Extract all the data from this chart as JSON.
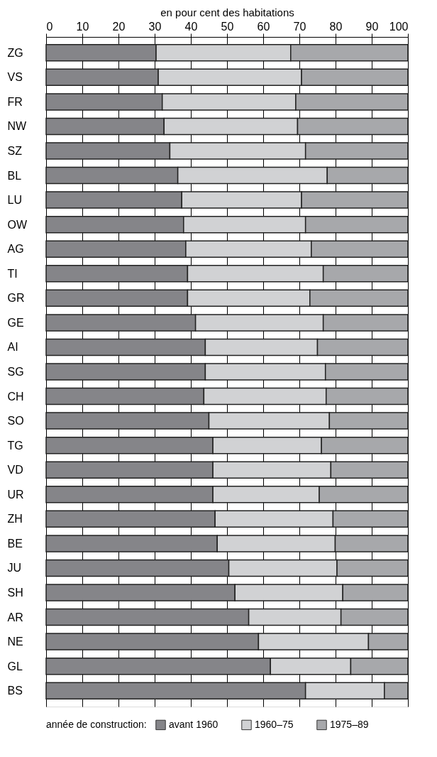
{
  "chart_data": {
    "type": "bar",
    "orientation": "horizontal",
    "stacked": true,
    "xlabel": "en pour cent des habitations",
    "legend_title": "année de construction:",
    "categories": [
      "ZG",
      "VS",
      "FR",
      "NW",
      "SZ",
      "BL",
      "LU",
      "OW",
      "AG",
      "TI",
      "GR",
      "GE",
      "AI",
      "SG",
      "CH",
      "SO",
      "TG",
      "VD",
      "UR",
      "ZH",
      "BE",
      "JU",
      "SH",
      "AR",
      "NE",
      "GL",
      "BS"
    ],
    "series": [
      {
        "name": "avant 1960",
        "color": "#858589",
        "values": [
          30.4,
          31.0,
          32.1,
          32.6,
          34.2,
          36.4,
          37.5,
          38.0,
          38.6,
          39.1,
          39.1,
          41.3,
          44.0,
          44.0,
          43.6,
          45.0,
          46.1,
          46.1,
          46.1,
          46.7,
          47.3,
          50.5,
          52.2,
          56.0,
          58.7,
          62.0,
          71.7
        ]
      },
      {
        "name": "1960–75",
        "color": "#d1d2d4",
        "values": [
          37.2,
          39.6,
          36.9,
          36.9,
          37.5,
          41.3,
          33.1,
          33.7,
          34.7,
          37.5,
          33.8,
          35.3,
          31.0,
          33.2,
          33.8,
          33.3,
          30.0,
          32.6,
          29.4,
          32.6,
          32.6,
          29.9,
          29.8,
          25.5,
          30.4,
          22.2,
          21.8
        ]
      },
      {
        "name": "1975–89",
        "color": "#a7a8ab",
        "values": [
          32.4,
          29.4,
          31.0,
          30.5,
          28.3,
          22.3,
          29.4,
          28.3,
          26.7,
          23.4,
          27.1,
          23.4,
          25.0,
          22.8,
          22.6,
          21.7,
          23.9,
          21.3,
          24.5,
          20.7,
          20.1,
          19.6,
          18.0,
          18.5,
          10.9,
          15.8,
          6.5
        ]
      }
    ],
    "xlim": [
      0,
      100
    ],
    "xticks": [
      0,
      10,
      20,
      30,
      40,
      50,
      60,
      70,
      80,
      90,
      100
    ],
    "grid": "x",
    "legend": "bottom"
  }
}
